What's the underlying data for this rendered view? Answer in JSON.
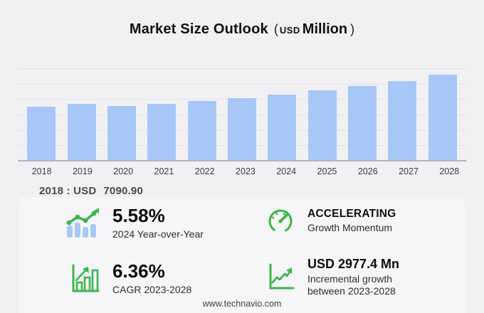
{
  "title": {
    "main": "Market Size Outlook",
    "open_paren": "(",
    "unit_small": "USD",
    "unit_large": "Million",
    "close_paren": ")"
  },
  "chart_data": {
    "type": "bar",
    "title": "Market Size Outlook (USD Million)",
    "categories": [
      "2018",
      "2019",
      "2020",
      "2021",
      "2022",
      "2023",
      "2024",
      "2025",
      "2026",
      "2027",
      "2028"
    ],
    "values": [
      7090.9,
      7450,
      7160,
      7470,
      7830,
      8246,
      8706,
      9250,
      9760,
      10420,
      11223
    ],
    "ylabel": "USD Million",
    "xlabel": "",
    "ylim": [
      0,
      12000
    ],
    "grid_step": 2000,
    "grid": true,
    "legend": false,
    "bar_color": "#a7c7f6"
  },
  "annotation": {
    "label": "2018 : USD",
    "value": "7090.90"
  },
  "stats": {
    "yoy": {
      "value": "5.58%",
      "label": "2024 Year-over-Year",
      "icon": "bar-chart-trend-icon"
    },
    "momentum": {
      "value": "ACCELERATING",
      "label": "Growth Momentum",
      "icon": "speedometer-icon"
    },
    "cagr": {
      "value": "6.36%",
      "label": "CAGR 2023-2028",
      "icon": "growth-bars-icon"
    },
    "incremental": {
      "value": "USD 2977.4 Mn",
      "label": "Incremental growth between 2023-2028",
      "icon": "line-chart-icon"
    }
  },
  "footer": {
    "url": "www.technavio.com"
  },
  "colors": {
    "background": "#f1f1f4",
    "panel": "#f6f6f8",
    "bar_blue": "#a7c7f6",
    "accent_green": "#3cb54c",
    "gridline": "#e3e3e6",
    "baseline": "#b4b4b9"
  }
}
